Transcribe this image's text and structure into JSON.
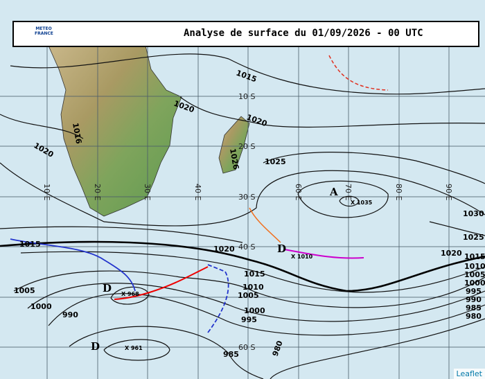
{
  "header": {
    "logo": "METEO FRANCE",
    "title": "Analyse de surface du 01/09/2026 - 00 UTC"
  },
  "latitudes": [
    "10 S",
    "20 S",
    "30 S",
    "40 S",
    "60 S"
  ],
  "longitudes": [
    "10 E",
    "20 E",
    "30 E",
    "40 E",
    "60 E",
    "70 E",
    "80 E",
    "90 E"
  ],
  "isobar_labels": [
    "1015",
    "1020",
    "1020",
    "1016",
    "1020",
    "1025",
    "1026",
    "1030",
    "1025",
    "1020",
    "1015",
    "1020",
    "1015",
    "1010",
    "1005",
    "1000",
    "995",
    "1005",
    "1000",
    "990",
    "985",
    "980",
    "1015",
    "1010",
    "1005",
    "1000",
    "995",
    "990",
    "985",
    "980"
  ],
  "centers": [
    {
      "symbol": "A",
      "label": "X 1035"
    },
    {
      "symbol": "D",
      "label": "X 1010"
    },
    {
      "symbol": "D",
      "label": "X 968"
    },
    {
      "symbol": "D",
      "label": "X 961"
    }
  ],
  "attribution": "Leaflet"
}
